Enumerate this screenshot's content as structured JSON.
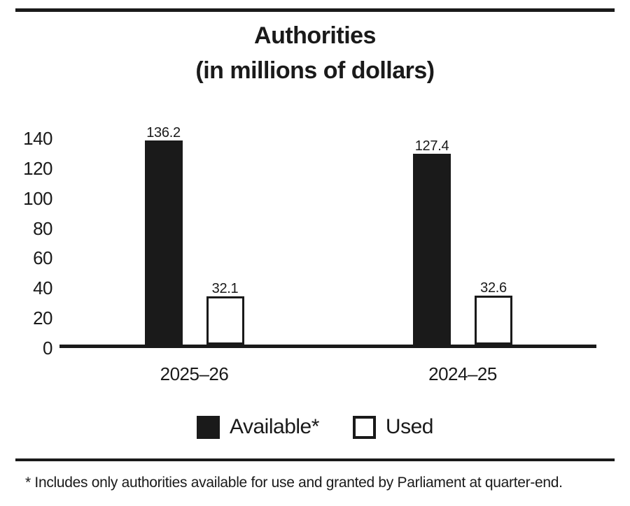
{
  "title": {
    "line1": "Authorities",
    "line2": "(in millions of dollars)"
  },
  "chart_data": {
    "type": "bar",
    "title": "Authorities (in millions of dollars)",
    "categories": [
      "2025–26",
      "2024–25"
    ],
    "series": [
      {
        "name": "Available*",
        "values": [
          136.2,
          127.4
        ],
        "labels": [
          "136.2",
          "127.4"
        ],
        "style": "filled",
        "color": "#1a1a1a"
      },
      {
        "name": "Used",
        "values": [
          32.1,
          32.6
        ],
        "labels": [
          "32.1",
          "32.6"
        ],
        "style": "outlined",
        "color": "#ffffff"
      }
    ],
    "xlabel": "",
    "ylabel": "",
    "ylim": [
      0,
      140
    ],
    "yticks": [
      0,
      20,
      40,
      60,
      80,
      100,
      120,
      140
    ],
    "grid": false,
    "legend_position": "bottom",
    "value_labels_shown": true
  },
  "legend": {
    "items": [
      {
        "label": "Available*",
        "swatch": "filled-black-square"
      },
      {
        "label": "Used",
        "swatch": "outlined-white-square"
      }
    ]
  },
  "footnote": "* Includes only authorities available for use and granted by Parliament at quarter-end.",
  "colors": {
    "bar_fill": "#1a1a1a",
    "bar_outline": "#1a1a1a",
    "text": "#1a1a1a",
    "background": "#ffffff",
    "rule": "#1a1a1a"
  }
}
